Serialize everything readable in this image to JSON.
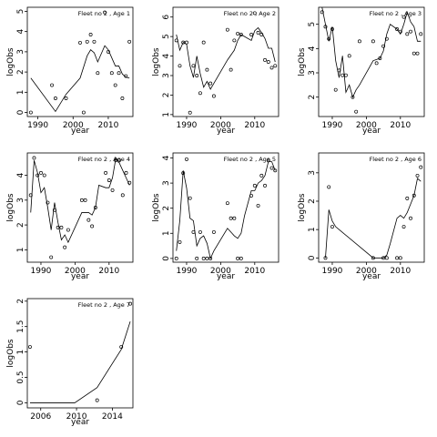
{
  "chart_data": [
    {
      "type": "scatter",
      "title": "Fleet no 2 , Age 1",
      "xlabel": "year",
      "ylabel": "logObs",
      "xlim": [
        1987,
        2017
      ],
      "ylim": [
        -0.2,
        5.2
      ],
      "xticks": [
        1990,
        2000,
        2010
      ],
      "yticks": [
        0,
        1,
        2,
        3,
        4,
        5
      ],
      "observed": {
        "x": [
          1988,
          1994,
          1995,
          1998,
          2002,
          2003,
          2004,
          2005,
          2006,
          2007,
          2009,
          2010,
          2011,
          2012,
          2013,
          2014,
          2015,
          2016
        ],
        "y": [
          0.0,
          1.35,
          0.7,
          0.7,
          3.45,
          0.0,
          3.5,
          3.85,
          3.5,
          1.95,
          4.95,
          3.0,
          1.95,
          1.35,
          1.95,
          0.7,
          1.8,
          3.5
        ]
      },
      "fitted": {
        "x": [
          1988,
          1995,
          1998,
          2002,
          2004,
          2005,
          2006,
          2007,
          2009,
          2010,
          2011,
          2012,
          2013,
          2014,
          2015,
          2016
        ],
        "y": [
          1.7,
          0.05,
          0.9,
          1.7,
          2.8,
          3.1,
          2.95,
          2.5,
          3.3,
          3.1,
          2.7,
          2.3,
          2.3,
          1.9,
          1.75,
          1.7
        ]
      }
    },
    {
      "type": "scatter",
      "title": "Fleet no 2 , Age 2",
      "xlabel": "year",
      "ylabel": "logObs",
      "xlim": [
        1986,
        2017
      ],
      "ylim": [
        0.9,
        6.5
      ],
      "xticks": [
        1990,
        2000,
        2010
      ],
      "yticks": [
        1,
        2,
        3,
        4,
        5,
        6
      ],
      "observed": {
        "x": [
          1987,
          1988,
          1989,
          1990,
          1991,
          1992,
          1993,
          1994,
          1995,
          1996,
          1997,
          1998,
          2002,
          2003,
          2004,
          2005,
          2006,
          2009,
          2010,
          2011,
          2012,
          2013,
          2014,
          2015,
          2016
        ],
        "y": [
          4.8,
          3.5,
          4.7,
          4.7,
          1.1,
          3.5,
          3.0,
          2.1,
          4.7,
          3.3,
          2.6,
          1.95,
          5.35,
          3.3,
          4.8,
          5.15,
          5.1,
          5.1,
          6.2,
          5.2,
          5.1,
          3.8,
          3.7,
          3.4,
          3.5
        ]
      },
      "fitted": {
        "x": [
          1987,
          1988,
          1989,
          1990,
          1991,
          1992,
          1993,
          1994,
          1995,
          1996,
          1997,
          1998,
          2002,
          2004,
          2005,
          2006,
          2007,
          2009,
          2010,
          2011,
          2012,
          2013,
          2014,
          2015,
          2016
        ],
        "y": [
          5.1,
          4.3,
          4.7,
          4.6,
          3.5,
          2.9,
          4.0,
          3.1,
          2.4,
          2.7,
          2.3,
          2.6,
          3.8,
          4.3,
          4.8,
          5.1,
          5.0,
          4.8,
          5.3,
          5.45,
          5.2,
          4.9,
          4.4,
          4.4,
          3.7
        ]
      }
    },
    {
      "type": "scatter",
      "title": "Fleet no 2 , Age 3",
      "xlabel": "year",
      "ylabel": "logObs",
      "xlim": [
        1986,
        2017
      ],
      "ylim": [
        1.2,
        5.7
      ],
      "xticks": [
        1990,
        2000,
        2010
      ],
      "yticks": [
        2,
        3,
        4,
        5
      ],
      "observed": {
        "x": [
          1987,
          1988,
          1989,
          1990,
          1991,
          1992,
          1993,
          1994,
          1995,
          1996,
          1997,
          1998,
          2002,
          2003,
          2004,
          2005,
          2006,
          2009,
          2010,
          2011,
          2012,
          2013,
          2014,
          2015,
          2016
        ],
        "y": [
          5.5,
          4.9,
          4.4,
          4.8,
          2.3,
          3.1,
          2.9,
          2.9,
          3.7,
          2.0,
          1.4,
          4.3,
          4.3,
          3.4,
          3.6,
          4.1,
          4.4,
          4.8,
          4.7,
          5.3,
          4.6,
          4.7,
          3.8,
          3.8,
          4.6
        ]
      },
      "fitted": {
        "x": [
          1987,
          1988,
          1989,
          1990,
          1991,
          1992,
          1993,
          1994,
          1995,
          1996,
          1997,
          1998,
          2002,
          2004,
          2005,
          2006,
          2007,
          2009,
          2010,
          2011,
          2012,
          2013,
          2014,
          2015,
          2016
        ],
        "y": [
          5.7,
          5.0,
          4.3,
          4.9,
          3.5,
          2.8,
          3.7,
          2.2,
          2.5,
          2.0,
          2.3,
          2.5,
          3.5,
          3.6,
          3.9,
          4.6,
          5.0,
          4.8,
          4.6,
          5.0,
          5.5,
          5.1,
          4.9,
          4.3,
          4.3
        ]
      }
    },
    {
      "type": "scatter",
      "title": "Fleet no 2 , Age 4",
      "xlabel": "year",
      "ylabel": "logObs",
      "xlim": [
        1986,
        2017
      ],
      "ylim": [
        0.5,
        4.9
      ],
      "xticks": [
        1990,
        2000,
        2010
      ],
      "yticks": [
        1,
        2,
        3,
        4
      ],
      "observed": {
        "x": [
          1987,
          1988,
          1989,
          1990,
          1991,
          1992,
          1993,
          1994,
          1995,
          1996,
          1997,
          1998,
          2002,
          2003,
          2004,
          2005,
          2006,
          2009,
          2010,
          2011,
          2012,
          2013,
          2014,
          2015,
          2016
        ],
        "y": [
          3.2,
          4.7,
          4.0,
          4.1,
          4.0,
          2.9,
          0.7,
          2.6,
          1.9,
          1.9,
          1.1,
          1.8,
          3.0,
          3.0,
          2.2,
          1.95,
          2.7,
          4.1,
          3.8,
          3.4,
          4.6,
          4.6,
          3.2,
          4.1,
          3.7
        ]
      },
      "fitted": {
        "x": [
          1987,
          1988,
          1989,
          1990,
          1991,
          1992,
          1993,
          1994,
          1995,
          1996,
          1997,
          1998,
          2002,
          2004,
          2005,
          2006,
          2007,
          2009,
          2010,
          2011,
          2012,
          2013,
          2014,
          2015,
          2016
        ],
        "y": [
          2.5,
          4.6,
          4.1,
          3.3,
          3.5,
          2.7,
          1.8,
          2.9,
          2.1,
          1.4,
          1.6,
          1.3,
          2.5,
          2.5,
          2.4,
          2.7,
          3.6,
          3.5,
          3.5,
          3.9,
          4.7,
          4.5,
          4.2,
          3.9,
          3.6
        ]
      }
    },
    {
      "type": "scatter",
      "title": "Fleet no 2 , Age 5",
      "xlabel": "year",
      "ylabel": "logObs",
      "xlim": [
        1986,
        2017
      ],
      "ylim": [
        -0.15,
        4.2
      ],
      "xticks": [
        1990,
        2000,
        2010
      ],
      "yticks": [
        0,
        1,
        2,
        3,
        4
      ],
      "observed": {
        "x": [
          1987,
          1988,
          1989,
          1990,
          1991,
          1992,
          1993,
          1994,
          1995,
          1996,
          1997,
          1998,
          2002,
          2003,
          2004,
          2005,
          2006,
          2009,
          2010,
          2011,
          2012,
          2013,
          2014,
          2015,
          2016
        ],
        "y": [
          0.0,
          0.65,
          3.4,
          3.95,
          2.4,
          1.05,
          0.0,
          1.05,
          0.0,
          0.0,
          0.0,
          1.05,
          2.2,
          1.6,
          1.6,
          0.0,
          0.0,
          2.5,
          2.9,
          2.1,
          3.3,
          2.9,
          3.9,
          3.6,
          3.5
        ]
      },
      "fitted": {
        "x": [
          1987,
          1988,
          1989,
          1990,
          1991,
          1992,
          1993,
          1994,
          1995,
          1996,
          1997,
          1998,
          2002,
          2004,
          2005,
          2006,
          2007,
          2009,
          2010,
          2011,
          2012,
          2013,
          2014,
          2015,
          2016
        ],
        "y": [
          0.3,
          1.5,
          3.5,
          2.8,
          1.6,
          1.5,
          0.5,
          0.8,
          0.9,
          0.6,
          0.0,
          0.3,
          1.2,
          0.9,
          0.8,
          1.0,
          1.7,
          2.7,
          2.7,
          3.0,
          3.1,
          3.3,
          3.85,
          3.85,
          3.5
        ]
      }
    },
    {
      "type": "scatter",
      "title": "Fleet no 2 , Age 6",
      "xlabel": "year",
      "ylabel": "logObs",
      "xlim": [
        1986,
        2017
      ],
      "ylim": [
        -0.15,
        3.7
      ],
      "xticks": [
        1990,
        2000,
        2010
      ],
      "yticks": [
        0,
        1,
        2,
        3
      ],
      "observed": {
        "x": [
          1988,
          1989,
          1990,
          2002,
          2005,
          2006,
          2009,
          2010,
          2011,
          2012,
          2013,
          2014,
          2015,
          2016
        ],
        "y": [
          0.0,
          2.5,
          1.1,
          0.0,
          0.0,
          0.0,
          0.0,
          0.0,
          1.1,
          2.1,
          1.4,
          2.2,
          2.9,
          3.2
        ]
      },
      "fitted": {
        "x": [
          1988,
          1989,
          1990,
          1991,
          2002,
          2005,
          2006,
          2007,
          2009,
          2010,
          2011,
          2012,
          2013,
          2014,
          2015,
          2016
        ],
        "y": [
          0.0,
          1.7,
          1.3,
          1.1,
          0.0,
          0.0,
          0.1,
          0.5,
          1.4,
          1.5,
          1.4,
          1.6,
          1.9,
          2.2,
          2.8,
          2.7
        ]
      }
    },
    {
      "type": "scatter",
      "title": "Fleet no 2 , Age 7",
      "xlabel": "year",
      "ylabel": "logObs",
      "xlim": [
        2004.5,
        2016.3
      ],
      "ylim": [
        -0.1,
        2.05
      ],
      "xticks": [
        2006,
        2010,
        2014
      ],
      "yticks": [
        0,
        0.5,
        1,
        1.5,
        2
      ],
      "observed": {
        "x": [
          2004.8,
          2012.3,
          2015,
          2016
        ],
        "y": [
          1.1,
          0.05,
          1.1,
          1.95
        ]
      },
      "fitted": {
        "x": [
          2004.8,
          2009.8,
          2012.3,
          2015,
          2016
        ],
        "y": [
          0.0,
          0.0,
          0.3,
          1.05,
          1.6
        ]
      }
    }
  ]
}
